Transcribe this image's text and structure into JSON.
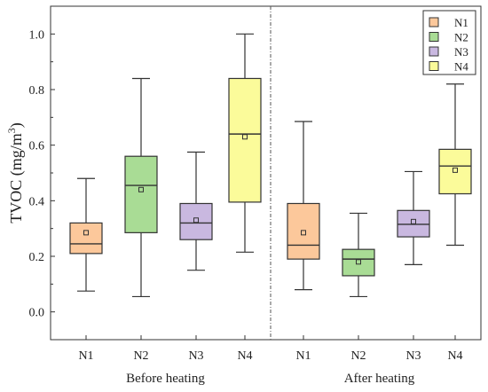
{
  "chart_data": {
    "type": "box",
    "ylabel": "TVOC (mg/m",
    "ylabel_sup": "3",
    "ylabel_close": ")",
    "ylim": [
      -0.1,
      1.1
    ],
    "yticks": [
      "0.0",
      "0.2",
      "0.4",
      "0.6",
      "0.8",
      "1.0"
    ],
    "yticks_values": [
      0.0,
      0.2,
      0.4,
      0.6,
      0.8,
      1.0
    ],
    "groups": [
      {
        "label": "Before heating",
        "boxes": [
          {
            "name": "N1",
            "min": 0.075,
            "q1": 0.21,
            "median": 0.245,
            "q3": 0.32,
            "max": 0.48,
            "mean": 0.285
          },
          {
            "name": "N2",
            "min": 0.055,
            "q1": 0.285,
            "median": 0.455,
            "q3": 0.56,
            "max": 0.84,
            "mean": 0.44
          },
          {
            "name": "N3",
            "min": 0.15,
            "q1": 0.26,
            "median": 0.32,
            "q3": 0.39,
            "max": 0.575,
            "mean": 0.33
          },
          {
            "name": "N4",
            "min": 0.215,
            "q1": 0.395,
            "median": 0.64,
            "q3": 0.84,
            "max": 1.0,
            "mean": 0.63
          }
        ]
      },
      {
        "label": "After heating",
        "boxes": [
          {
            "name": "N1",
            "min": 0.08,
            "q1": 0.19,
            "median": 0.24,
            "q3": 0.39,
            "max": 0.685,
            "mean": 0.285
          },
          {
            "name": "N2",
            "min": 0.055,
            "q1": 0.13,
            "median": 0.19,
            "q3": 0.225,
            "max": 0.355,
            "mean": 0.18
          },
          {
            "name": "N3",
            "min": 0.17,
            "q1": 0.27,
            "median": 0.315,
            "q3": 0.365,
            "max": 0.505,
            "mean": 0.325
          },
          {
            "name": "N4",
            "min": 0.24,
            "q1": 0.425,
            "median": 0.525,
            "q3": 0.585,
            "max": 0.82,
            "mean": 0.51
          }
        ]
      }
    ],
    "legend": {
      "placement": "top-right",
      "entries": [
        {
          "name": "N1",
          "color": "#fcc89b"
        },
        {
          "name": "N2",
          "color": "#a9dc95"
        },
        {
          "name": "N3",
          "color": "#c9b8e0"
        },
        {
          "name": "N4",
          "color": "#fbfb9a"
        }
      ]
    },
    "grid": false,
    "divider": "dash-dot vertical line between groups"
  }
}
